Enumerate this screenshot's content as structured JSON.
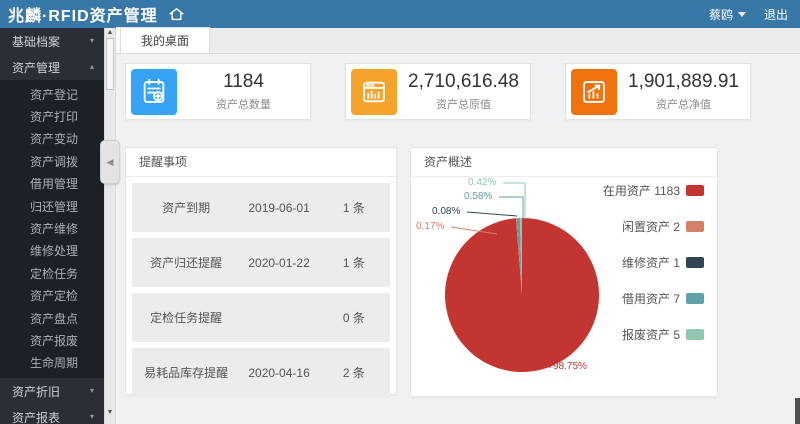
{
  "topbar": {
    "logo": "兆麟·RFID资产管理",
    "username": "蔡鸥",
    "logout_label": "退出",
    "bg_color": "#3878a8"
  },
  "tabs": {
    "active_tab": "我的桌面"
  },
  "sidebar": {
    "groups": [
      {
        "label": "基础档案",
        "expanded": false,
        "children": []
      },
      {
        "label": "资产管理",
        "expanded": true,
        "children": [
          "资产登记",
          "资产打印",
          "资产变动",
          "资产调拨",
          "借用管理",
          "归还管理",
          "资产维修",
          "维修处理",
          "定检任务",
          "资产定检",
          "资产盘点",
          "资产报废",
          "生命周期"
        ]
      },
      {
        "label": "资产折旧",
        "expanded": false,
        "children": []
      },
      {
        "label": "资产报表",
        "expanded": false,
        "children": []
      }
    ]
  },
  "stats": [
    {
      "value": "1184",
      "label": "资产总数量",
      "icon": "clipboard-plus-icon",
      "color": "#36a3f4"
    },
    {
      "value": "2,710,616.48",
      "label": "资产总原值",
      "icon": "window-chart-icon",
      "color": "#f5a32b"
    },
    {
      "value": "1,901,889.91",
      "label": "资产总净值",
      "icon": "trend-up-icon",
      "color": "#f2720c"
    }
  ],
  "reminders": {
    "title": "提醒事项",
    "rows": [
      {
        "name": "资产到期",
        "date": "2019-06-01",
        "count": "1 条"
      },
      {
        "name": "资产归还提醒",
        "date": "2020-01-22",
        "count": "1 条"
      },
      {
        "name": "定检任务提醒",
        "date": "",
        "count": "0 条"
      },
      {
        "name": "易耗品库存提醒",
        "date": "2020-04-16",
        "count": "2 条"
      }
    ]
  },
  "overview": {
    "title": "资产概述"
  },
  "chart_data": {
    "type": "pie",
    "title": "资产概述",
    "total": 1198,
    "start_angle": "top",
    "direction": "clockwise",
    "legend_position": "right",
    "series": [
      {
        "name": "在用资产",
        "value": 1183,
        "percent_label": "98.75%",
        "color": "#c23531"
      },
      {
        "name": "闲置资产",
        "value": 2,
        "percent_label": "0.17%",
        "color": "#d48265"
      },
      {
        "name": "维修资产",
        "value": 1,
        "percent_label": "0.08%",
        "color": "#2f4554"
      },
      {
        "name": "借用资产",
        "value": 7,
        "percent_label": "0.58%",
        "color": "#61a0a8"
      },
      {
        "name": "报废资产",
        "value": 5,
        "percent_label": "0.42%",
        "color": "#91c7ae"
      }
    ],
    "percent_labels": [
      {
        "text": "0.42%",
        "color": "#91c7ae",
        "x": 57,
        "y": 0,
        "line": "92,6 114,6 114,42"
      },
      {
        "text": "0.58%",
        "color": "#61a0a8",
        "x": 53,
        "y": 14,
        "line": "88,20 112,20 112,42"
      },
      {
        "text": "0.08%",
        "color": "#2f4554",
        "x": 21,
        "y": 29,
        "line": "56,35 106,39"
      },
      {
        "text": "0.17%",
        "color": "#d48265",
        "x": 5,
        "y": 44,
        "line": "40,50 86,57"
      },
      {
        "text": "98.75%",
        "color": "#c23531",
        "x": 142,
        "y": 184,
        "line": "124,174 136,190 140,190"
      }
    ]
  }
}
